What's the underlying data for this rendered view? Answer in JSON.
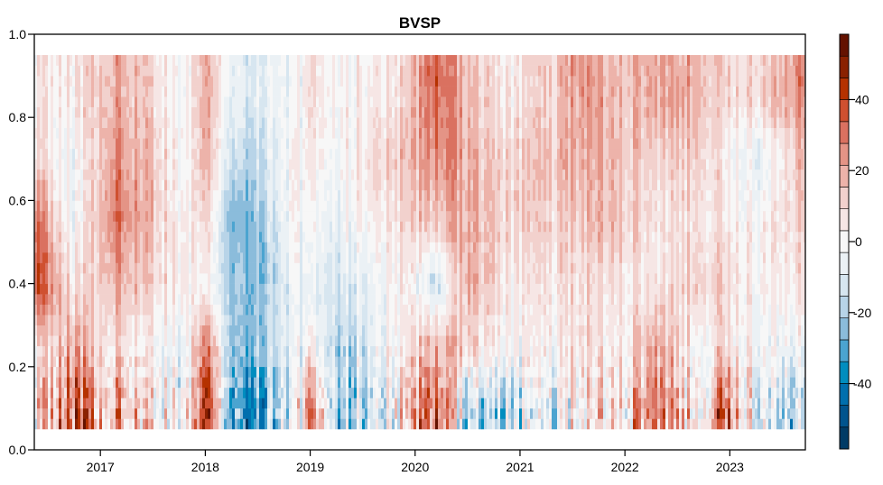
{
  "chart_data": {
    "type": "heatmap",
    "title": "BVSP",
    "xlabel": "",
    "ylabel": "",
    "xlim": [
      2016.37,
      2023.72
    ],
    "ylim": [
      0.0,
      1.0
    ],
    "y_data_range": [
      0.05,
      0.95
    ],
    "x_ticks": [
      "2017",
      "2018",
      "2019",
      "2020",
      "2021",
      "2022",
      "2023"
    ],
    "x_tick_values": [
      2017,
      2018,
      2019,
      2020,
      2021,
      2022,
      2023
    ],
    "y_ticks": [
      "0.0",
      "0.2",
      "0.4",
      "0.6",
      "0.8",
      "1.0"
    ],
    "y_tick_values": [
      0,
      0.2,
      0.4,
      0.6,
      0.8,
      1.0
    ],
    "colorbar": {
      "range": [
        -58.4,
        58.4
      ],
      "ticks": [
        "40",
        "20",
        "0",
        "-20",
        "-40"
      ],
      "tick_values": [
        40,
        20,
        0,
        -20,
        -40
      ],
      "colors": [
        "#003b66",
        "#00548e",
        "#006fae",
        "#008dbf",
        "#4ba4d0",
        "#8bbcdb",
        "#b8d4e8",
        "#d7e6f0",
        "#ebf1f5",
        "#f7f7f7",
        "#f6e6e5",
        "#f2d1cd",
        "#edb3aa",
        "#e49486",
        "#da7160",
        "#cf5030",
        "#b53200",
        "#8a2100",
        "#641200"
      ]
    },
    "grid_description": "coarse estimate of heatmap values; columns = time, rows = y level",
    "x": [
      2016.4,
      2016.75,
      2017.1,
      2017.45,
      2017.8,
      2018.0,
      2018.3,
      2018.6,
      2018.85,
      2019.0,
      2019.3,
      2019.6,
      2019.9,
      2020.2,
      2020.5,
      2020.9,
      2021.3,
      2021.6,
      2021.9,
      2022.3,
      2022.7,
      2022.95,
      2023.3,
      2023.7
    ],
    "y": [
      0.1,
      0.25,
      0.4,
      0.55,
      0.7,
      0.85
    ],
    "values": [
      [
        10,
        35,
        20,
        15,
        -10,
        45,
        -40,
        -25,
        -10,
        20,
        -20,
        -10,
        10,
        40,
        -20,
        -15,
        -10,
        5,
        0,
        30,
        5,
        35,
        -15,
        -10
      ],
      [
        5,
        20,
        10,
        5,
        -10,
        30,
        -30,
        -15,
        -10,
        0,
        -20,
        -5,
        5,
        20,
        10,
        0,
        0,
        10,
        0,
        20,
        0,
        10,
        -5,
        0
      ],
      [
        40,
        5,
        20,
        15,
        0,
        0,
        -25,
        -20,
        -5,
        -10,
        -10,
        -5,
        5,
        -15,
        20,
        5,
        5,
        10,
        5,
        5,
        15,
        10,
        0,
        10
      ],
      [
        30,
        -5,
        30,
        20,
        0,
        10,
        -30,
        -15,
        0,
        -5,
        -5,
        5,
        10,
        15,
        20,
        10,
        10,
        15,
        15,
        5,
        10,
        5,
        0,
        15
      ],
      [
        10,
        -5,
        25,
        20,
        -5,
        20,
        -20,
        -10,
        0,
        0,
        0,
        10,
        15,
        25,
        20,
        10,
        15,
        20,
        15,
        10,
        15,
        5,
        -10,
        20
      ],
      [
        5,
        5,
        20,
        15,
        -5,
        20,
        -10,
        -5,
        -5,
        5,
        0,
        5,
        10,
        35,
        15,
        5,
        10,
        25,
        15,
        20,
        20,
        10,
        10,
        30
      ]
    ]
  }
}
